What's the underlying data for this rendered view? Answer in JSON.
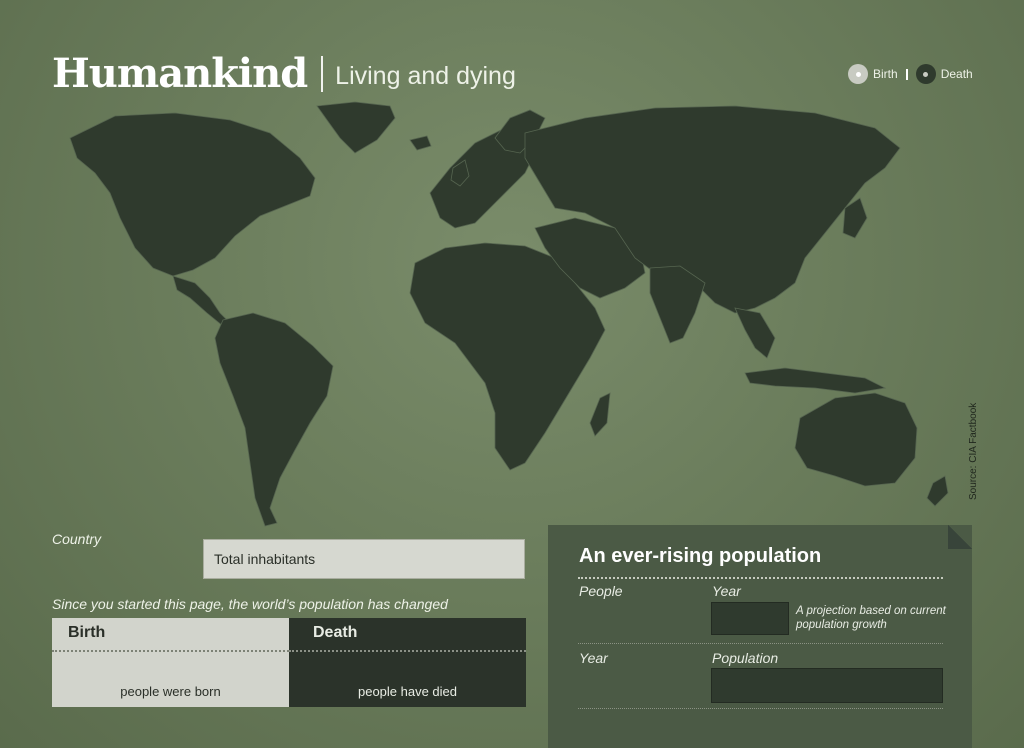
{
  "header": {
    "title": "Humankind",
    "subtitle": "Living and dying"
  },
  "legend": {
    "birth_label": "Birth",
    "death_label": "Death"
  },
  "map": {
    "source": "Source: CIA Factbook",
    "land_color": "#2f3a2d",
    "background_color": "#6b7d5c"
  },
  "country": {
    "label": "Country",
    "inhabitants_text": "Total inhabitants"
  },
  "change": {
    "intro": "Since you started this page, the world’s population has changed",
    "birth_header": "Birth",
    "death_header": "Death",
    "birth_text": "people were born",
    "death_text": "people have died"
  },
  "projection_panel": {
    "title": "An ever-rising population",
    "people_label": "People",
    "year_label": "Year",
    "note": "A projection based on current population growth",
    "year_label_2": "Year",
    "population_label": "Population"
  }
}
